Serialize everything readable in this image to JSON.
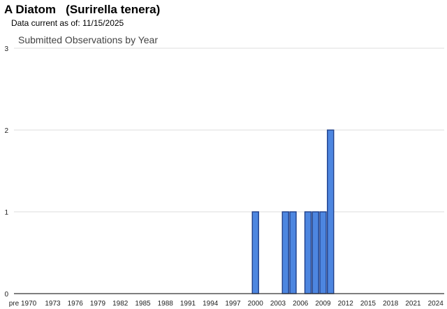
{
  "header": {
    "common_name": "A Diatom",
    "scientific_name": "(Surirella tenera)",
    "data_current": "Data current as of: 11/15/2025"
  },
  "chart_data": {
    "type": "bar",
    "title": "Submitted Observations by Year",
    "xlabel": "",
    "ylabel": "",
    "ylim": [
      0,
      3
    ],
    "y_ticks": [
      "0",
      "1",
      "2",
      "3"
    ],
    "grid": true,
    "x_tick_labels": [
      "pre 1970",
      "1973",
      "1976",
      "1979",
      "1982",
      "1985",
      "1988",
      "1991",
      "1994",
      "1997",
      "2000",
      "2003",
      "2006",
      "2009",
      "2012",
      "2015",
      "2018",
      "2021",
      "2024"
    ],
    "categories": [
      "pre 1970",
      "1970",
      "1971",
      "1972",
      "1973",
      "1974",
      "1975",
      "1976",
      "1977",
      "1978",
      "1979",
      "1980",
      "1981",
      "1982",
      "1983",
      "1984",
      "1985",
      "1986",
      "1987",
      "1988",
      "1989",
      "1990",
      "1991",
      "1992",
      "1993",
      "1994",
      "1995",
      "1996",
      "1997",
      "1998",
      "1999",
      "2000",
      "2001",
      "2002",
      "2003",
      "2004",
      "2005",
      "2006",
      "2007",
      "2008",
      "2009",
      "2010",
      "2011",
      "2012",
      "2013",
      "2014",
      "2015",
      "2016",
      "2017",
      "2018",
      "2019",
      "2020",
      "2021",
      "2022",
      "2023",
      "2024",
      "2025"
    ],
    "values": [
      0,
      0,
      0,
      0,
      0,
      0,
      0,
      0,
      0,
      0,
      0,
      0,
      0,
      0,
      0,
      0,
      0,
      0,
      0,
      0,
      0,
      0,
      0,
      0,
      0,
      0,
      0,
      0,
      0,
      0,
      0,
      1,
      0,
      0,
      0,
      1,
      1,
      0,
      1,
      1,
      1,
      2,
      0,
      0,
      0,
      0,
      0,
      0,
      0,
      0,
      0,
      0,
      0,
      0,
      0,
      0,
      0
    ],
    "colors": {
      "bar_fill": "#4d86e0",
      "bar_stroke": "#1f3f8a",
      "grid": "#dddddd",
      "axis": "#333333"
    }
  }
}
